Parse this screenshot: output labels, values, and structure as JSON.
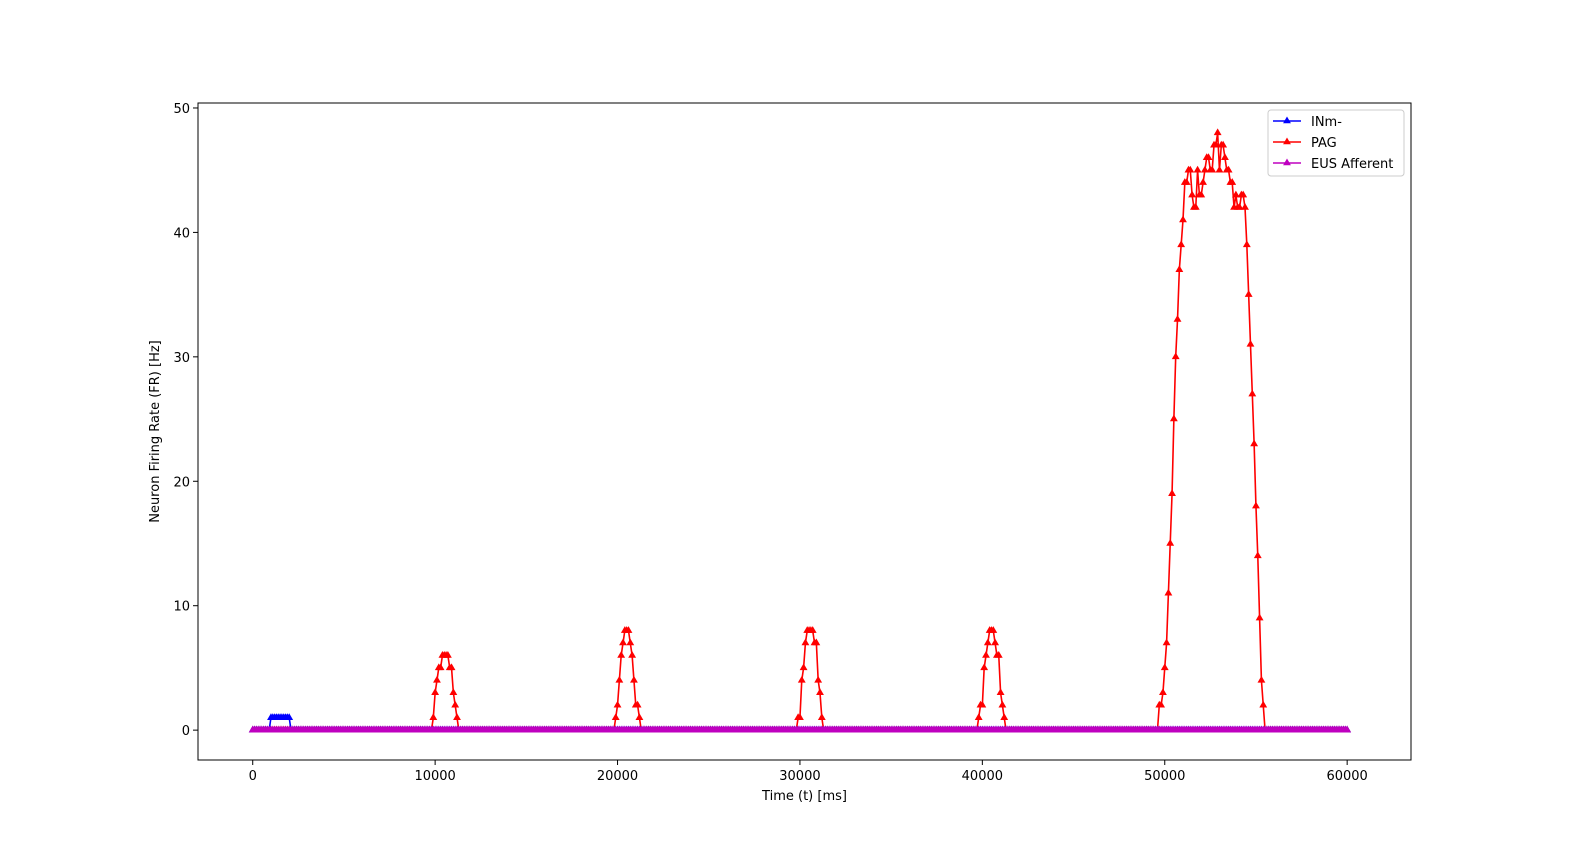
{
  "chart_data": {
    "type": "line",
    "title": "",
    "xlabel": "Time (t) [ms]",
    "ylabel": "Neuron Firing Rate (FR) [Hz]",
    "xlim": [
      -3000,
      63500
    ],
    "ylim": [
      -2.4,
      50.4
    ],
    "xticks": [
      0,
      10000,
      20000,
      30000,
      40000,
      50000,
      60000
    ],
    "yticks": [
      0,
      10,
      20,
      30,
      40,
      50
    ],
    "grid": false,
    "legend_position": "top-right",
    "series": [
      {
        "name": "INm-",
        "color": "#0000ff",
        "marker": "triangle-up",
        "baseline": 0,
        "x_range": [
          0,
          60000
        ],
        "step": 100,
        "points": [
          [
            1000,
            1
          ],
          [
            1100,
            1
          ],
          [
            1200,
            1
          ],
          [
            1300,
            1
          ],
          [
            1400,
            1
          ],
          [
            1500,
            1
          ],
          [
            1600,
            1
          ],
          [
            1700,
            1
          ],
          [
            1800,
            1
          ],
          [
            1900,
            1
          ],
          [
            2000,
            1
          ]
        ]
      },
      {
        "name": "PAG",
        "color": "#ff0000",
        "marker": "triangle-up",
        "baseline": 0,
        "x_range": [
          0,
          60000
        ],
        "step": 100,
        "points": [
          [
            9900,
            1
          ],
          [
            10000,
            3
          ],
          [
            10100,
            4
          ],
          [
            10200,
            5
          ],
          [
            10300,
            5
          ],
          [
            10400,
            6
          ],
          [
            10500,
            6
          ],
          [
            10600,
            6
          ],
          [
            10700,
            6
          ],
          [
            10800,
            5
          ],
          [
            10900,
            5
          ],
          [
            11000,
            3
          ],
          [
            11100,
            2
          ],
          [
            11200,
            1
          ],
          [
            19900,
            1
          ],
          [
            20000,
            2
          ],
          [
            20100,
            4
          ],
          [
            20200,
            6
          ],
          [
            20300,
            7
          ],
          [
            20400,
            8
          ],
          [
            20500,
            8
          ],
          [
            20600,
            8
          ],
          [
            20700,
            7
          ],
          [
            20800,
            6
          ],
          [
            20900,
            4
          ],
          [
            21000,
            2
          ],
          [
            21100,
            2
          ],
          [
            21200,
            1
          ],
          [
            29900,
            1
          ],
          [
            30000,
            1
          ],
          [
            30100,
            4
          ],
          [
            30200,
            5
          ],
          [
            30300,
            7
          ],
          [
            30400,
            8
          ],
          [
            30500,
            8
          ],
          [
            30600,
            8
          ],
          [
            30700,
            8
          ],
          [
            30800,
            7
          ],
          [
            30900,
            7
          ],
          [
            31000,
            4
          ],
          [
            31100,
            3
          ],
          [
            31200,
            1
          ],
          [
            39800,
            1
          ],
          [
            39900,
            2
          ],
          [
            40000,
            2
          ],
          [
            40100,
            5
          ],
          [
            40200,
            6
          ],
          [
            40300,
            7
          ],
          [
            40400,
            8
          ],
          [
            40500,
            8
          ],
          [
            40600,
            8
          ],
          [
            40700,
            7
          ],
          [
            40800,
            6
          ],
          [
            40900,
            6
          ],
          [
            41000,
            3
          ],
          [
            41100,
            2
          ],
          [
            41200,
            1
          ],
          [
            49700,
            2
          ],
          [
            49800,
            2
          ],
          [
            49900,
            3
          ],
          [
            50000,
            5
          ],
          [
            50100,
            7
          ],
          [
            50200,
            11
          ],
          [
            50300,
            15
          ],
          [
            50400,
            19
          ],
          [
            50500,
            25
          ],
          [
            50600,
            30
          ],
          [
            50700,
            33
          ],
          [
            50800,
            37
          ],
          [
            50900,
            39
          ],
          [
            51000,
            41
          ],
          [
            51100,
            44
          ],
          [
            51200,
            44
          ],
          [
            51300,
            45
          ],
          [
            51400,
            45
          ],
          [
            51500,
            43
          ],
          [
            51600,
            42
          ],
          [
            51700,
            42
          ],
          [
            51800,
            45
          ],
          [
            51900,
            43
          ],
          [
            52000,
            43
          ],
          [
            52100,
            44
          ],
          [
            52200,
            45
          ],
          [
            52300,
            46
          ],
          [
            52400,
            46
          ],
          [
            52500,
            45
          ],
          [
            52600,
            45
          ],
          [
            52700,
            47
          ],
          [
            52800,
            47
          ],
          [
            52900,
            48
          ],
          [
            53000,
            45
          ],
          [
            53100,
            47
          ],
          [
            53200,
            47
          ],
          [
            53300,
            46
          ],
          [
            53400,
            45
          ],
          [
            53500,
            45
          ],
          [
            53600,
            44
          ],
          [
            53700,
            44
          ],
          [
            53800,
            42
          ],
          [
            53900,
            43
          ],
          [
            54000,
            42
          ],
          [
            54100,
            42
          ],
          [
            54200,
            43
          ],
          [
            54300,
            43
          ],
          [
            54400,
            42
          ],
          [
            54500,
            39
          ],
          [
            54600,
            35
          ],
          [
            54700,
            31
          ],
          [
            54800,
            27
          ],
          [
            54900,
            23
          ],
          [
            55000,
            18
          ],
          [
            55100,
            14
          ],
          [
            55200,
            9
          ],
          [
            55300,
            4
          ],
          [
            55400,
            2
          ]
        ]
      },
      {
        "name": "EUS Afferent",
        "color": "#bf00bf",
        "marker": "triangle-up",
        "baseline": 0,
        "x_range": [
          0,
          60000
        ],
        "step": 100,
        "points": []
      }
    ]
  }
}
